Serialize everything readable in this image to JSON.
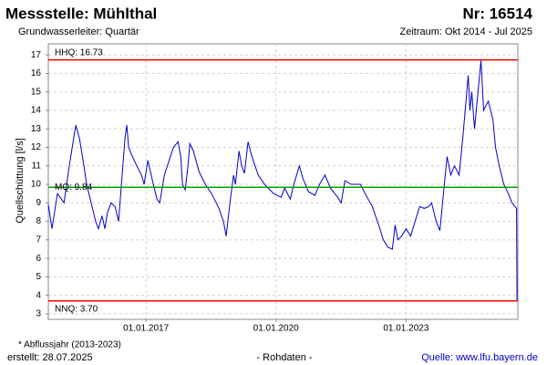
{
  "chart_data": {
    "type": "line",
    "title": "Messstelle: Mühlthal",
    "station": "Nr: 16514",
    "subtitle": "Grundwasserleiter: Quartär",
    "period": "Zeitraum: Okt 2014 - Jul 2025",
    "y_label": "Quellschüttung [l/s]",
    "footnote": "* Abflussjahr (2013-2023)",
    "created": "erstellt:  28.07.2025",
    "data_note": "- Rohdaten -",
    "source": "Quelle:  www.lfu.bayern.de",
    "grid": true,
    "xlim": [
      "2014-10-01",
      "2025-07-31"
    ],
    "ylim": [
      2.7,
      17.6
    ],
    "xticks": [
      {
        "value": "2017-01-01",
        "label": "01.01.2017"
      },
      {
        "value": "2020-01-01",
        "label": "01.01.2020"
      },
      {
        "value": "2023-01-01",
        "label": "01.01.2023"
      }
    ],
    "yticks": [
      3,
      4,
      5,
      6,
      7,
      8,
      9,
      10,
      11,
      12,
      13,
      14,
      15,
      16,
      17
    ],
    "reference_lines": [
      {
        "label": "HHQ: 16.73",
        "value": 16.73,
        "color": "#ff0000"
      },
      {
        "label": "MQ: 9.84",
        "value": 9.84,
        "color": "#00a000"
      },
      {
        "label": "NNQ: 3.70",
        "value": 3.7,
        "color": "#ff0000"
      }
    ],
    "x": [
      "2014-10-01",
      "2014-11-01",
      "2014-12-17",
      "2015-02-10",
      "2015-03-27",
      "2015-05-20",
      "2015-06-20",
      "2015-07-28",
      "2015-08-20",
      "2015-09-27",
      "2015-11-04",
      "2015-11-27",
      "2015-12-28",
      "2016-01-20",
      "2016-02-12",
      "2016-03-14",
      "2016-04-15",
      "2016-05-15",
      "2016-06-08",
      "2016-07-08",
      "2016-07-23",
      "2016-08-08",
      "2016-09-08",
      "2016-10-16",
      "2016-11-24",
      "2016-12-16",
      "2017-01-17",
      "2017-03-04",
      "2017-04-04",
      "2017-04-27",
      "2017-06-05",
      "2017-08-20",
      "2017-09-28",
      "2017-10-21",
      "2017-11-05",
      "2017-11-28",
      "2017-12-21",
      "2018-01-05",
      "2018-02-05",
      "2018-03-23",
      "2018-05-16",
      "2018-07-08",
      "2018-08-16",
      "2018-09-08",
      "2018-10-16",
      "2018-11-08",
      "2018-12-09",
      "2019-01-09",
      "2019-01-24",
      "2019-02-24",
      "2019-03-18",
      "2019-04-10",
      "2019-05-11",
      "2019-06-12",
      "2019-08-05",
      "2019-09-27",
      "2019-12-13",
      "2020-02-13",
      "2020-03-15",
      "2020-05-01",
      "2020-05-31",
      "2020-07-16",
      "2020-08-16",
      "2020-10-01",
      "2020-11-24",
      "2021-01-02",
      "2021-02-17",
      "2021-04-04",
      "2021-06-04",
      "2021-07-04",
      "2021-08-04",
      "2021-09-27",
      "2021-12-13",
      "2022-01-21",
      "2022-03-23",
      "2022-05-16",
      "2022-06-23",
      "2022-08-01",
      "2022-09-08",
      "2022-10-01",
      "2022-10-24",
      "2022-11-24",
      "2023-01-02",
      "2023-02-09",
      "2023-03-18",
      "2023-04-26",
      "2023-06-04",
      "2023-07-12",
      "2023-08-04",
      "2023-09-12",
      "2023-10-13",
      "2023-11-20",
      "2023-12-13",
      "2024-01-13",
      "2024-02-13",
      "2024-03-23",
      "2024-04-23",
      "2024-06-08",
      "2024-06-23",
      "2024-07-08",
      "2024-07-31",
      "2024-09-24",
      "2024-10-16",
      "2024-11-24",
      "2025-01-02",
      "2025-01-24",
      "2025-02-24",
      "2025-04-04",
      "2025-05-12",
      "2025-06-12",
      "2025-07-20",
      "2025-07-24"
    ],
    "series": [
      {
        "color": "#0000cc",
        "values": [
          8.9,
          7.6,
          9.5,
          9.0,
          11.0,
          13.2,
          12.5,
          11.0,
          10.0,
          9.0,
          8.0,
          7.6,
          8.3,
          7.6,
          8.5,
          9.0,
          8.8,
          8.0,
          10.0,
          12.5,
          13.2,
          12.0,
          11.5,
          11.0,
          10.5,
          10.0,
          11.3,
          10.0,
          9.2,
          9.0,
          10.5,
          12.0,
          12.3,
          11.5,
          10.0,
          9.7,
          11.0,
          12.2,
          11.8,
          10.7,
          10.0,
          9.5,
          9.0,
          8.7,
          8.0,
          7.2,
          9.0,
          10.5,
          10.0,
          11.8,
          11.0,
          10.6,
          12.3,
          11.5,
          10.5,
          10.0,
          9.5,
          9.3,
          9.8,
          9.2,
          10.0,
          11.0,
          10.3,
          9.6,
          9.4,
          10.0,
          10.5,
          9.8,
          9.3,
          9.0,
          10.2,
          10.0,
          10.0,
          9.5,
          8.8,
          7.8,
          7.0,
          6.6,
          6.5,
          7.8,
          7.0,
          7.2,
          7.6,
          7.2,
          8.0,
          8.8,
          8.7,
          8.8,
          9.0,
          8.0,
          7.5,
          10.0,
          11.5,
          10.5,
          11.0,
          10.5,
          12.5,
          15.9,
          14.0,
          15.0,
          13.0,
          16.7,
          14.0,
          14.5,
          13.5,
          12.0,
          11.0,
          10.0,
          9.5,
          9.0,
          8.7,
          3.7
        ]
      }
    ]
  }
}
